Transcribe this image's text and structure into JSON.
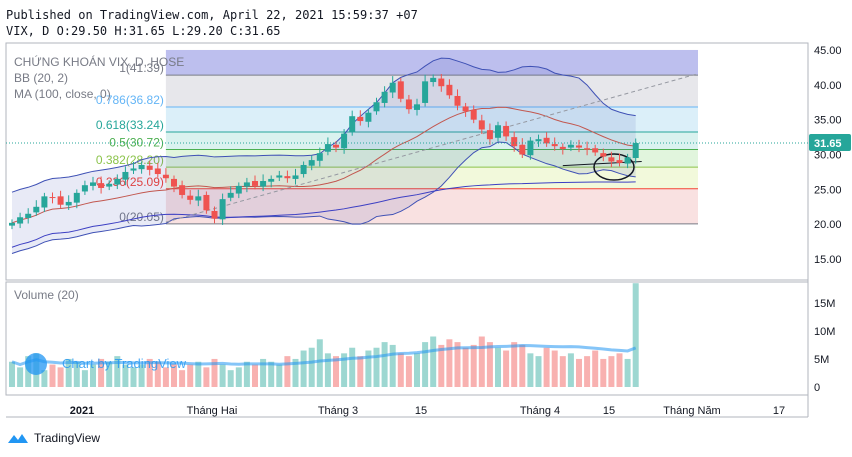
{
  "header": {
    "published": "Published on TradingView.com, April 22, 2021 15:59:37 +07",
    "quote": "VIX, D O:29.50 H:31.65 L:29.20 C:31.65"
  },
  "legend": {
    "title": "CHỨNG KHOÁN VIX, D, HOSE",
    "bb": "BB (20, 2)",
    "ma": "MA (100, close, 0)"
  },
  "volume_label": "Volume (20)",
  "watermark": "Chart by TradingView",
  "footer": "TradingView",
  "colors": {
    "up": "#26a69a",
    "down": "#ef5350",
    "bb_band": "#3f51b5",
    "bb_basis": "#c2574f",
    "ma": "#3c3fc3",
    "price_badge": "#26a69a"
  },
  "chart_data": {
    "type": "candlestick",
    "price_axis": {
      "ticks": [
        15.0,
        20.0,
        25.0,
        30.0,
        35.0,
        40.0,
        45.0
      ],
      "range": [
        12.0,
        46.0
      ]
    },
    "volume_axis": {
      "ticks": [
        "0",
        "5M",
        "10M",
        "15M"
      ],
      "range": [
        0,
        18
      ]
    },
    "x_ticks": [
      "2021",
      "Tháng Hai",
      "Tháng 3",
      "15",
      "Tháng 4",
      "15",
      "Tháng Năm",
      "17"
    ],
    "last_price": "31.65",
    "fibonacci": [
      {
        "ratio": 1.0,
        "value": 41.39,
        "label": "1(41.39)",
        "color": "#787b86"
      },
      {
        "ratio": 0.786,
        "value": 36.82,
        "label": "0.786(36.82)",
        "color": "#64b5f6"
      },
      {
        "ratio": 0.618,
        "value": 33.24,
        "label": "0.618(33.24)",
        "color": "#26a69a"
      },
      {
        "ratio": 0.5,
        "value": 30.72,
        "label": "0.5(30.72)",
        "color": "#4caf50"
      },
      {
        "ratio": 0.382,
        "value": 28.2,
        "label": "0.382(28.20)",
        "color": "#8bc34a"
      },
      {
        "ratio": 0.236,
        "value": 25.09,
        "label": "0.236(25.09)",
        "color": "#f44336"
      },
      {
        "ratio": 0.0,
        "value": 20.05,
        "label": "0(20.05)",
        "color": "#787b86"
      }
    ],
    "closes": [
      20.2,
      21.0,
      21.5,
      22.5,
      24.0,
      23.8,
      22.8,
      23.2,
      24.5,
      25.6,
      26.0,
      25.2,
      25.8,
      26.5,
      27.5,
      28.0,
      28.5,
      27.8,
      27.2,
      26.6,
      25.4,
      24.2,
      23.5,
      24.0,
      22.0,
      20.8,
      23.6,
      24.5,
      25.5,
      26.0,
      25.5,
      26.2,
      26.5,
      27.0,
      26.6,
      27.0,
      28.5,
      29.2,
      30.2,
      31.5,
      31.0,
      33.0,
      35.5,
      34.8,
      36.0,
      37.5,
      39.0,
      40.3,
      38.0,
      36.5,
      37.2,
      40.5,
      41.0,
      39.8,
      38.5,
      37.0,
      36.2,
      35.0,
      33.6,
      32.2,
      34.2,
      32.6,
      31.2,
      30.0,
      32.0,
      32.2,
      31.6,
      31.2,
      30.8,
      31.4,
      31.0,
      30.7,
      30.3,
      29.7,
      29.0,
      28.8,
      29.6,
      31.65
    ],
    "volumes": [
      4.5,
      3.5,
      5.5,
      6,
      3,
      4,
      3.5,
      5,
      4.5,
      3,
      4,
      5,
      4.5,
      5.5,
      4,
      3.5,
      4,
      5,
      4.5,
      3.5,
      4,
      3,
      4,
      4.5,
      3.5,
      5,
      4,
      3,
      3.5,
      4.5,
      4,
      5,
      4.5,
      4,
      5.5,
      5,
      6.5,
      7,
      8.5,
      6,
      5.5,
      6,
      7,
      5.5,
      6.5,
      7,
      8,
      7.5,
      6,
      5.5,
      6,
      8,
      9,
      7.5,
      8.5,
      8,
      7,
      7.5,
      9,
      8,
      7,
      6.5,
      8,
      7.5,
      6,
      5.5,
      7,
      6.5,
      5.5,
      6,
      5,
      5.5,
      6.5,
      5,
      5.5,
      6,
      5,
      18.5
    ]
  }
}
